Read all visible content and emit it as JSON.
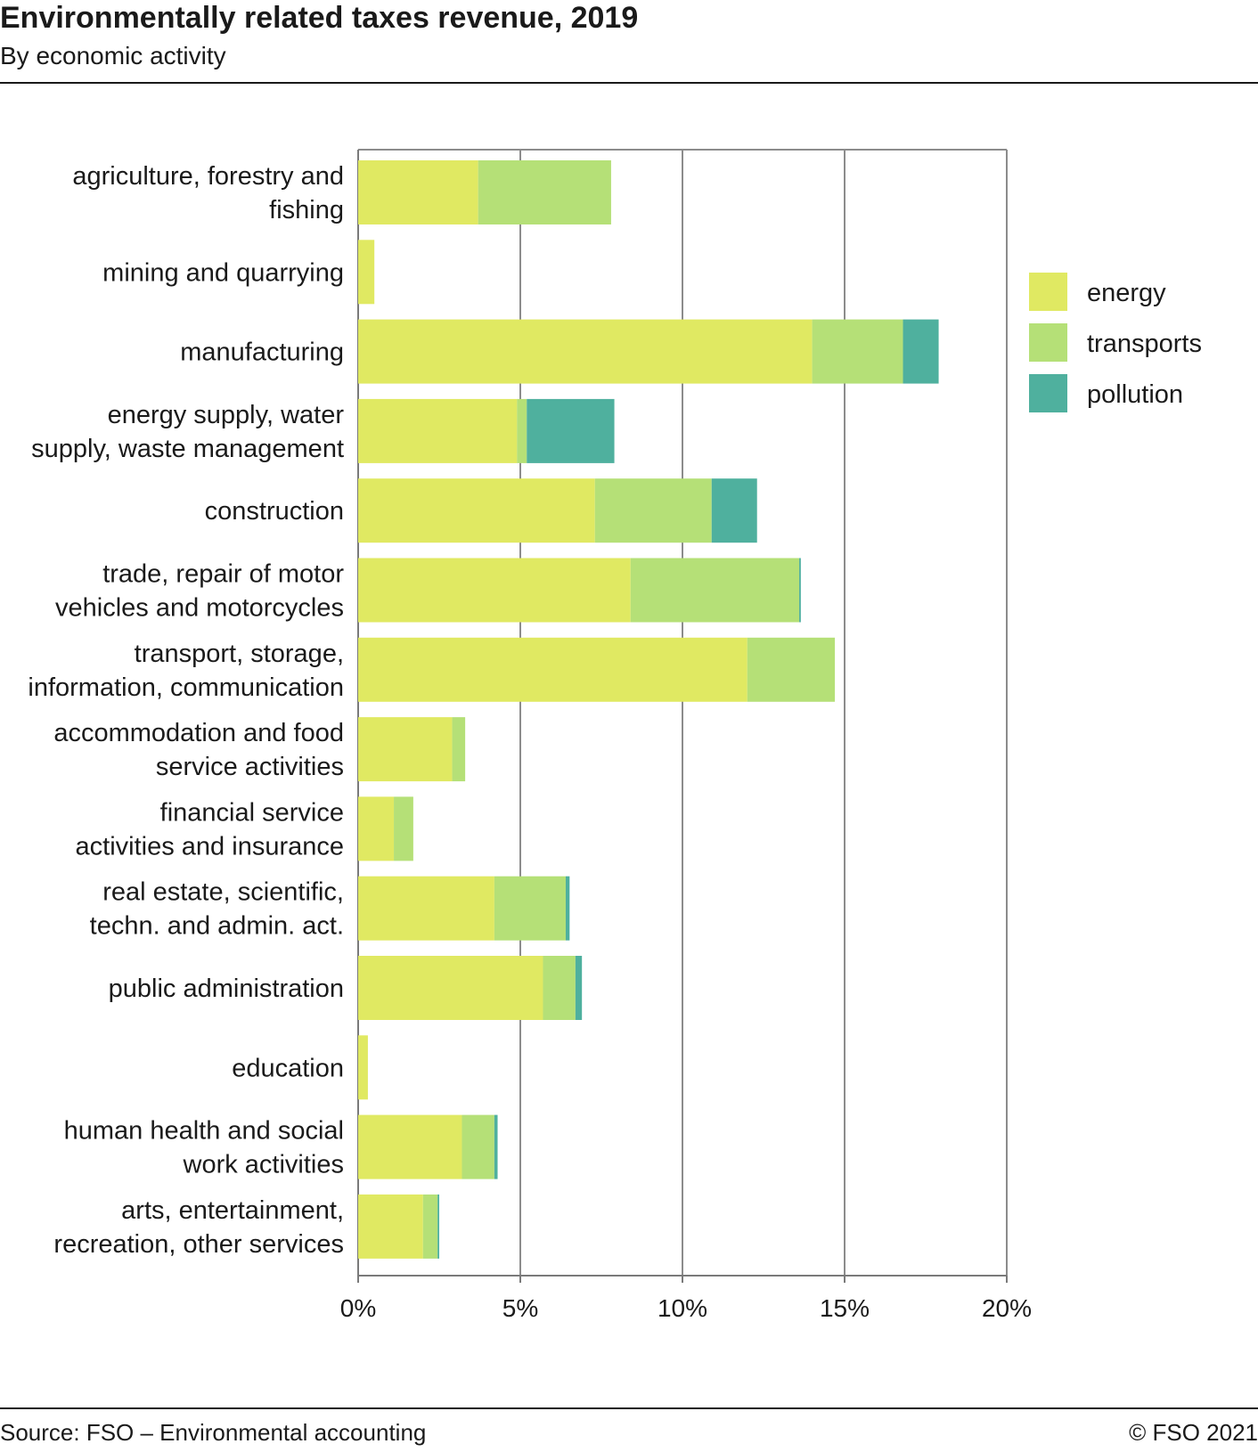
{
  "header": {
    "title": "Environmentally related taxes revenue, 2019",
    "subtitle": "By economic activity"
  },
  "footer": {
    "source": "Source: FSO – Environmental accounting",
    "copyright": "© FSO 2021"
  },
  "colors": {
    "energy": "#e0e962",
    "transports": "#b5e077",
    "pollution": "#4fb09e",
    "grid": "#8c8c8c",
    "axis": "#7a7a7a"
  },
  "chart_data": {
    "type": "bar",
    "orientation": "horizontal",
    "stacked": true,
    "title": "Environmentally related taxes revenue, 2019",
    "subtitle": "By economic activity",
    "xlim": [
      0,
      20
    ],
    "x_ticks": [
      0,
      5,
      10,
      15,
      20
    ],
    "x_tick_labels": [
      "0%",
      "5%",
      "10%",
      "15%",
      "20%"
    ],
    "grid": true,
    "legend_position": "right",
    "categories": [
      [
        "agriculture, forestry and",
        "fishing"
      ],
      [
        "mining and quarrying"
      ],
      [
        "manufacturing"
      ],
      [
        "energy supply, water",
        "supply, waste management"
      ],
      [
        "construction"
      ],
      [
        "trade, repair of motor",
        "vehicles and motorcycles"
      ],
      [
        "transport, storage,",
        "information, communication"
      ],
      [
        "accommodation and food",
        "service activities"
      ],
      [
        "financial service",
        "activities and insurance"
      ],
      [
        "real estate, scientific,",
        "techn. and admin. act."
      ],
      [
        "public administration"
      ],
      [
        "education"
      ],
      [
        "human health and social",
        "work activities"
      ],
      [
        "arts, entertainment,",
        "recreation, other services"
      ]
    ],
    "series": [
      {
        "name": "energy",
        "color": "#e0e962",
        "values": [
          3.7,
          0.5,
          14.0,
          4.9,
          7.3,
          8.4,
          12.0,
          2.9,
          1.1,
          4.2,
          5.7,
          0.3,
          3.2,
          2.0
        ]
      },
      {
        "name": "transports",
        "color": "#b5e077",
        "values": [
          4.1,
          0.0,
          2.8,
          0.3,
          3.6,
          5.2,
          2.7,
          0.4,
          0.6,
          2.2,
          1.0,
          0.0,
          1.0,
          0.45
        ]
      },
      {
        "name": "pollution",
        "color": "#4fb09e",
        "values": [
          0.0,
          0.0,
          1.1,
          2.7,
          1.4,
          0.05,
          0.0,
          0.0,
          0.0,
          0.12,
          0.2,
          0.0,
          0.1,
          0.05
        ]
      }
    ]
  }
}
